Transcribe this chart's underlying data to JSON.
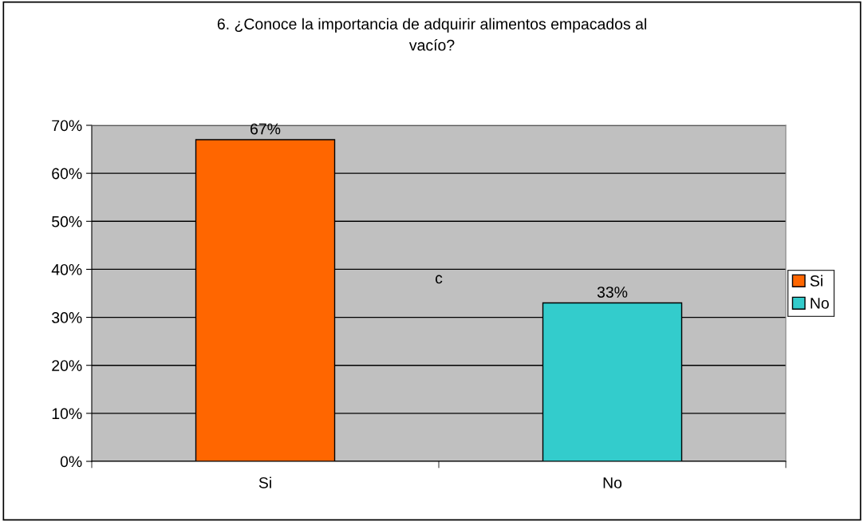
{
  "chart_data": {
    "type": "bar",
    "title": "6. ¿Conoce la importancia de adquirir alimentos empacados al\nvacío?",
    "categories": [
      "Si",
      "No"
    ],
    "series": [
      {
        "name": "Si",
        "color": "#ff6600",
        "values": [
          67,
          null
        ],
        "value_labels": [
          "67%",
          null
        ]
      },
      {
        "name": "No",
        "color": "#33cccc",
        "values": [
          null,
          33
        ],
        "value_labels": [
          null,
          "33%"
        ]
      }
    ],
    "ylim": [
      0,
      70
    ],
    "yticks": [
      {
        "value": 0,
        "label": "0%"
      },
      {
        "value": 10,
        "label": "10%"
      },
      {
        "value": 20,
        "label": "20%"
      },
      {
        "value": 30,
        "label": "30%"
      },
      {
        "value": 40,
        "label": "40%"
      },
      {
        "value": 50,
        "label": "50%"
      },
      {
        "value": 60,
        "label": "60%"
      },
      {
        "value": 70,
        "label": "70%"
      }
    ],
    "grid": "y",
    "legend": "right",
    "annotations": [
      "c"
    ]
  }
}
